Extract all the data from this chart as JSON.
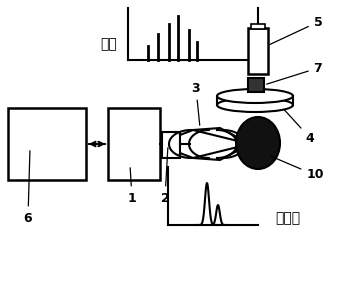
{
  "bg_color": "#ffffff",
  "line_color": "#000000",
  "labels": {
    "title_top": "输出",
    "title_bottom": "激发光",
    "num1": "1",
    "num2": "2",
    "num3": "3",
    "num4": "4",
    "num5": "5",
    "num6": "6",
    "num7": "7",
    "num10": "10"
  }
}
